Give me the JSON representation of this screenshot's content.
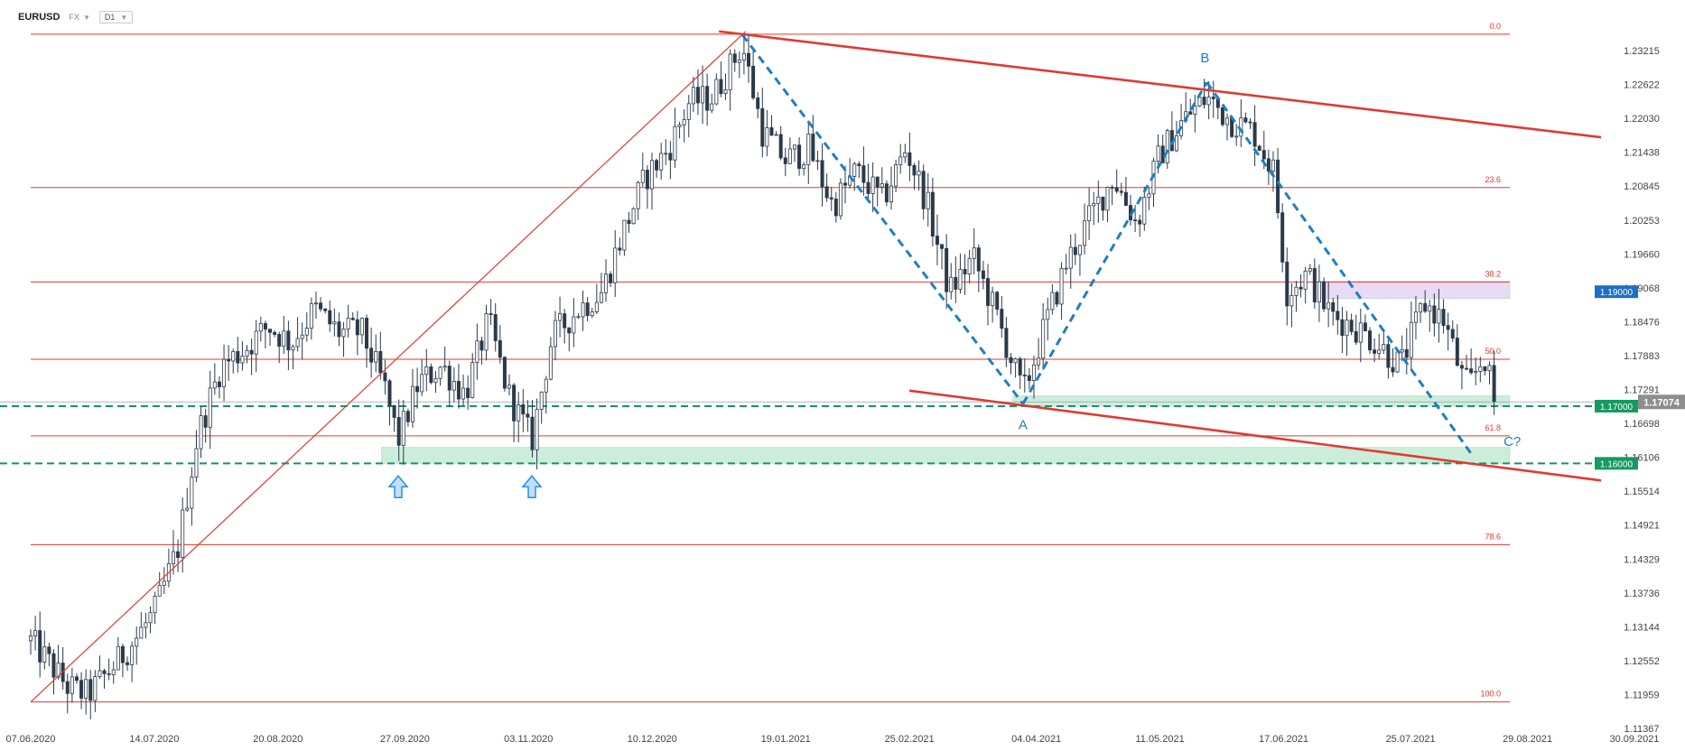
{
  "header": {
    "symbol": "EURUSD",
    "exchange": "FX",
    "timeframe": "D1"
  },
  "chart_data": {
    "type": "candlestick",
    "symbol": "EURUSD",
    "timeframe": "D1",
    "y_ticks": [
      "1.23215",
      "1.22622",
      "1.22030",
      "1.21438",
      "1.20845",
      "1.20253",
      "1.19660",
      "1.19068",
      "1.18476",
      "1.17883",
      "1.17291",
      "1.16698",
      "1.16106",
      "1.15514",
      "1.14921",
      "1.14329",
      "1.13736",
      "1.13144",
      "1.12552",
      "1.11959",
      "1.11367"
    ],
    "ylim": [
      1.11367,
      1.23215
    ],
    "x_ticks": [
      "07.06.2020",
      "14.07.2020",
      "20.08.2020",
      "27.09.2020",
      "03.11.2020",
      "10.12.2020",
      "19.01.2021",
      "25.02.2021",
      "04.04.2021",
      "11.05.2021",
      "17.06.2021",
      "25.07.2021",
      "29.08.2021",
      "30.09.2021"
    ],
    "fib_levels": [
      {
        "label": "0.0",
        "price": 1.235
      },
      {
        "label": "23.6",
        "price": 1.2082
      },
      {
        "label": "38.2",
        "price": 1.1917
      },
      {
        "label": "50.0",
        "price": 1.1782
      },
      {
        "label": "61.8",
        "price": 1.1648
      },
      {
        "label": "78.6",
        "price": 1.1458
      },
      {
        "label": "100.0",
        "price": 1.1183
      }
    ],
    "price_tags": [
      {
        "label": "1.19000",
        "price": 1.19,
        "color": "#1c6fc4"
      },
      {
        "label": "1.17000",
        "price": 1.17,
        "color": "#159a5f"
      },
      {
        "label": "1.16000",
        "price": 1.16,
        "color": "#159a5f"
      }
    ],
    "current_price": {
      "label": "1.17074",
      "price": 1.17074,
      "color": "#8e8e8e"
    },
    "zones": [
      {
        "from_date": "2021-06-28",
        "to_date": "2021-09-20",
        "low": 1.1888,
        "high": 1.1918,
        "color": "#e7d6f5"
      },
      {
        "from_date": "2021-03-28",
        "to_date": "2021-09-20",
        "low": 1.17,
        "high": 1.1718,
        "color": "#c8ecd8"
      },
      {
        "from_date": "2020-09-20",
        "to_date": "2021-09-20",
        "low": 1.16,
        "high": 1.1628,
        "color": "#c8ecd8"
      }
    ],
    "trendlines": [
      {
        "from": [
          "2020-12-30",
          1.2355
        ],
        "to": [
          "2021-09-20",
          1.217
        ],
        "color": "#e03a32",
        "width": 2.6
      },
      {
        "from": [
          "2021-02-25",
          1.1727
        ],
        "to": [
          "2021-09-20",
          1.157
        ],
        "color": "#e03a32",
        "width": 2.6
      },
      {
        "from": [
          "2020-06-07",
          1.1183
        ],
        "to": [
          "2021-01-07",
          1.2355
        ],
        "color": "#e03a32",
        "width": 1.2
      }
    ],
    "wave": {
      "points": [
        [
          "2021-01-06",
          1.2349
        ],
        [
          "2021-03-31",
          1.1704
        ],
        [
          "2021-05-25",
          1.2266
        ],
        [
          "2021-08-12",
          1.1618
        ]
      ],
      "labels": [
        "A",
        "B",
        "C?"
      ],
      "color": "#1f7fc0"
    },
    "arrows": [
      [
        "2020-09-25",
        1.1597
      ],
      [
        "2020-11-04",
        1.1597
      ]
    ],
    "candles_seed": [
      [
        "2020-06-07",
        1.129
      ],
      [
        "2020-06-12",
        1.1255
      ],
      [
        "2020-06-18",
        1.121
      ],
      [
        "2020-06-24",
        1.1195
      ],
      [
        "2020-07-01",
        1.124
      ],
      [
        "2020-07-08",
        1.129
      ],
      [
        "2020-07-14",
        1.134
      ],
      [
        "2020-07-21",
        1.145
      ],
      [
        "2020-07-27",
        1.165
      ],
      [
        "2020-08-03",
        1.177
      ],
      [
        "2020-08-10",
        1.18
      ],
      [
        "2020-08-17",
        1.184
      ],
      [
        "2020-08-24",
        1.181
      ],
      [
        "2020-08-31",
        1.187
      ],
      [
        "2020-09-07",
        1.183
      ],
      [
        "2020-09-14",
        1.183
      ],
      [
        "2020-09-21",
        1.173
      ],
      [
        "2020-09-25",
        1.164
      ],
      [
        "2020-10-01",
        1.174
      ],
      [
        "2020-10-08",
        1.177
      ],
      [
        "2020-10-15",
        1.172
      ],
      [
        "2020-10-22",
        1.185
      ],
      [
        "2020-10-28",
        1.172
      ],
      [
        "2020-11-04",
        1.164
      ],
      [
        "2020-11-10",
        1.182
      ],
      [
        "2020-11-18",
        1.187
      ],
      [
        "2020-11-25",
        1.19
      ],
      [
        "2020-12-01",
        1.2
      ],
      [
        "2020-12-08",
        1.21
      ],
      [
        "2020-12-15",
        1.215
      ],
      [
        "2020-12-21",
        1.223
      ],
      [
        "2020-12-28",
        1.224
      ],
      [
        "2021-01-06",
        1.233
      ],
      [
        "2021-01-12",
        1.218
      ],
      [
        "2021-01-19",
        1.213
      ],
      [
        "2021-01-26",
        1.215
      ],
      [
        "2021-02-02",
        1.205
      ],
      [
        "2021-02-09",
        1.211
      ],
      [
        "2021-02-17",
        1.206
      ],
      [
        "2021-02-24",
        1.215
      ],
      [
        "2021-03-02",
        1.206
      ],
      [
        "2021-03-09",
        1.19
      ],
      [
        "2021-03-16",
        1.196
      ],
      [
        "2021-03-23",
        1.186
      ],
      [
        "2021-03-31",
        1.172
      ],
      [
        "2021-04-06",
        1.183
      ],
      [
        "2021-04-13",
        1.195
      ],
      [
        "2021-04-20",
        1.203
      ],
      [
        "2021-04-27",
        1.21
      ],
      [
        "2021-05-04",
        1.202
      ],
      [
        "2021-05-11",
        1.214
      ],
      [
        "2021-05-18",
        1.22
      ],
      [
        "2021-05-25",
        1.224
      ],
      [
        "2021-06-01",
        1.22
      ],
      [
        "2021-06-08",
        1.218
      ],
      [
        "2021-06-14",
        1.211
      ],
      [
        "2021-06-18",
        1.19
      ],
      [
        "2021-06-24",
        1.193
      ],
      [
        "2021-07-01",
        1.186
      ],
      [
        "2021-07-08",
        1.184
      ],
      [
        "2021-07-15",
        1.181
      ],
      [
        "2021-07-22",
        1.177
      ],
      [
        "2021-07-29",
        1.188
      ],
      [
        "2021-08-04",
        1.185
      ],
      [
        "2021-08-10",
        1.174
      ],
      [
        "2021-08-12",
        1.174
      ],
      [
        "2021-08-16",
        1.179
      ],
      [
        "2021-08-19",
        1.1707
      ]
    ]
  }
}
